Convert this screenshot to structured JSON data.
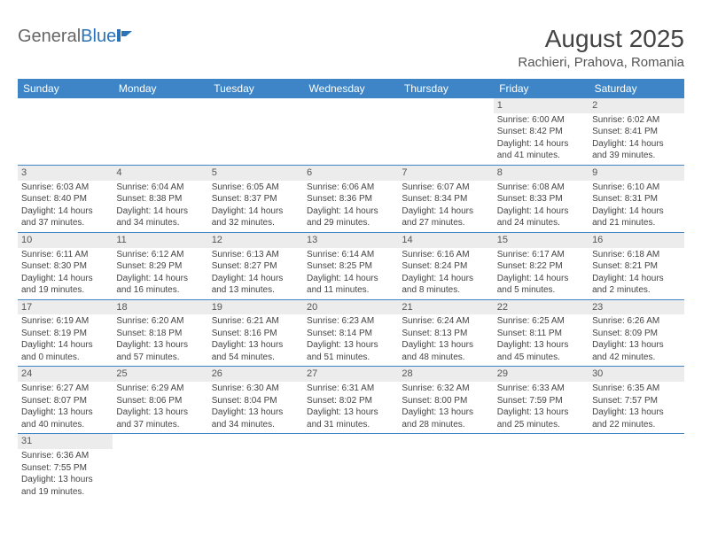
{
  "logo": {
    "text1": "General",
    "text2": "Blue"
  },
  "title": {
    "month": "August 2025",
    "location": "Rachieri, Prahova, Romania"
  },
  "colors": {
    "header_bg": "#3d85c6",
    "header_text": "#ffffff",
    "rule": "#3d85c6",
    "daynum_bg": "#ececec",
    "body_text": "#444444",
    "logo_gray": "#666666",
    "logo_blue": "#2b73b8"
  },
  "day_labels": [
    "Sunday",
    "Monday",
    "Tuesday",
    "Wednesday",
    "Thursday",
    "Friday",
    "Saturday"
  ],
  "weeks": [
    [
      null,
      null,
      null,
      null,
      null,
      {
        "n": "1",
        "sr": "6:00 AM",
        "ss": "8:42 PM",
        "dl": "14 hours and 41 minutes."
      },
      {
        "n": "2",
        "sr": "6:02 AM",
        "ss": "8:41 PM",
        "dl": "14 hours and 39 minutes."
      }
    ],
    [
      {
        "n": "3",
        "sr": "6:03 AM",
        "ss": "8:40 PM",
        "dl": "14 hours and 37 minutes."
      },
      {
        "n": "4",
        "sr": "6:04 AM",
        "ss": "8:38 PM",
        "dl": "14 hours and 34 minutes."
      },
      {
        "n": "5",
        "sr": "6:05 AM",
        "ss": "8:37 PM",
        "dl": "14 hours and 32 minutes."
      },
      {
        "n": "6",
        "sr": "6:06 AM",
        "ss": "8:36 PM",
        "dl": "14 hours and 29 minutes."
      },
      {
        "n": "7",
        "sr": "6:07 AM",
        "ss": "8:34 PM",
        "dl": "14 hours and 27 minutes."
      },
      {
        "n": "8",
        "sr": "6:08 AM",
        "ss": "8:33 PM",
        "dl": "14 hours and 24 minutes."
      },
      {
        "n": "9",
        "sr": "6:10 AM",
        "ss": "8:31 PM",
        "dl": "14 hours and 21 minutes."
      }
    ],
    [
      {
        "n": "10",
        "sr": "6:11 AM",
        "ss": "8:30 PM",
        "dl": "14 hours and 19 minutes."
      },
      {
        "n": "11",
        "sr": "6:12 AM",
        "ss": "8:29 PM",
        "dl": "14 hours and 16 minutes."
      },
      {
        "n": "12",
        "sr": "6:13 AM",
        "ss": "8:27 PM",
        "dl": "14 hours and 13 minutes."
      },
      {
        "n": "13",
        "sr": "6:14 AM",
        "ss": "8:25 PM",
        "dl": "14 hours and 11 minutes."
      },
      {
        "n": "14",
        "sr": "6:16 AM",
        "ss": "8:24 PM",
        "dl": "14 hours and 8 minutes."
      },
      {
        "n": "15",
        "sr": "6:17 AM",
        "ss": "8:22 PM",
        "dl": "14 hours and 5 minutes."
      },
      {
        "n": "16",
        "sr": "6:18 AM",
        "ss": "8:21 PM",
        "dl": "14 hours and 2 minutes."
      }
    ],
    [
      {
        "n": "17",
        "sr": "6:19 AM",
        "ss": "8:19 PM",
        "dl": "14 hours and 0 minutes."
      },
      {
        "n": "18",
        "sr": "6:20 AM",
        "ss": "8:18 PM",
        "dl": "13 hours and 57 minutes."
      },
      {
        "n": "19",
        "sr": "6:21 AM",
        "ss": "8:16 PM",
        "dl": "13 hours and 54 minutes."
      },
      {
        "n": "20",
        "sr": "6:23 AM",
        "ss": "8:14 PM",
        "dl": "13 hours and 51 minutes."
      },
      {
        "n": "21",
        "sr": "6:24 AM",
        "ss": "8:13 PM",
        "dl": "13 hours and 48 minutes."
      },
      {
        "n": "22",
        "sr": "6:25 AM",
        "ss": "8:11 PM",
        "dl": "13 hours and 45 minutes."
      },
      {
        "n": "23",
        "sr": "6:26 AM",
        "ss": "8:09 PM",
        "dl": "13 hours and 42 minutes."
      }
    ],
    [
      {
        "n": "24",
        "sr": "6:27 AM",
        "ss": "8:07 PM",
        "dl": "13 hours and 40 minutes."
      },
      {
        "n": "25",
        "sr": "6:29 AM",
        "ss": "8:06 PM",
        "dl": "13 hours and 37 minutes."
      },
      {
        "n": "26",
        "sr": "6:30 AM",
        "ss": "8:04 PM",
        "dl": "13 hours and 34 minutes."
      },
      {
        "n": "27",
        "sr": "6:31 AM",
        "ss": "8:02 PM",
        "dl": "13 hours and 31 minutes."
      },
      {
        "n": "28",
        "sr": "6:32 AM",
        "ss": "8:00 PM",
        "dl": "13 hours and 28 minutes."
      },
      {
        "n": "29",
        "sr": "6:33 AM",
        "ss": "7:59 PM",
        "dl": "13 hours and 25 minutes."
      },
      {
        "n": "30",
        "sr": "6:35 AM",
        "ss": "7:57 PM",
        "dl": "13 hours and 22 minutes."
      }
    ],
    [
      {
        "n": "31",
        "sr": "6:36 AM",
        "ss": "7:55 PM",
        "dl": "13 hours and 19 minutes."
      },
      null,
      null,
      null,
      null,
      null,
      null
    ]
  ],
  "labels": {
    "sunrise": "Sunrise: ",
    "sunset": "Sunset: ",
    "daylight": "Daylight: "
  }
}
